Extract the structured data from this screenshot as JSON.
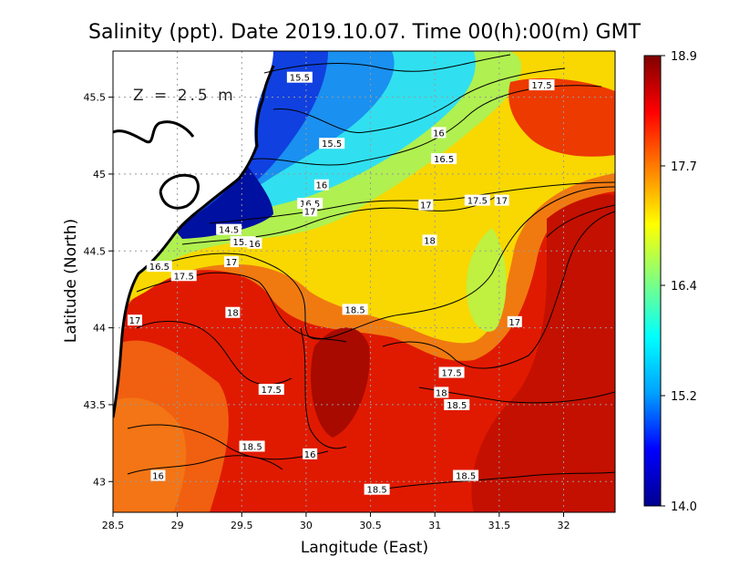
{
  "chart_data": {
    "type": "heatmap",
    "title": "Salinity (ppt). Date 2019.10.07. Time 00(h):00(m) GMT",
    "depth_label": "Z = 2.5 m",
    "xlabel": "Langitude (East)",
    "ylabel": "Latitude (North)",
    "xlim": [
      28.5,
      32.4
    ],
    "ylim": [
      42.8,
      45.8
    ],
    "x_ticks": [
      {
        "value": 28.5,
        "label": "28.5"
      },
      {
        "value": 29,
        "label": "29"
      },
      {
        "value": 29.5,
        "label": "29.5"
      },
      {
        "value": 30,
        "label": "30"
      },
      {
        "value": 30.5,
        "label": "30.5"
      },
      {
        "value": 31,
        "label": "31"
      },
      {
        "value": 31.5,
        "label": "31.5"
      },
      {
        "value": 32,
        "label": "32"
      }
    ],
    "y_ticks": [
      {
        "value": 43,
        "label": "43"
      },
      {
        "value": 43.5,
        "label": "43.5"
      },
      {
        "value": 44,
        "label": "44"
      },
      {
        "value": 44.5,
        "label": "44.5"
      },
      {
        "value": 45,
        "label": "45"
      },
      {
        "value": 45.5,
        "label": "45.5"
      }
    ],
    "grid": true,
    "colorbar": {
      "min": 14.0,
      "max": 18.9,
      "ticks": [
        {
          "value": 18.9,
          "label": "18.9"
        },
        {
          "value": 17.7,
          "label": "17.7"
        },
        {
          "value": 16.4,
          "label": "16.4"
        },
        {
          "value": 15.2,
          "label": "15.2"
        },
        {
          "value": 14.0,
          "label": "14.0"
        }
      ],
      "colormap": [
        "#00008f",
        "#0000ff",
        "#00a0ff",
        "#00ffff",
        "#80ff80",
        "#ffff00",
        "#ff8000",
        "#ff0000",
        "#800000"
      ]
    },
    "contour_labels": [
      {
        "lon": 29.95,
        "lat": 45.63,
        "text": "15.5"
      },
      {
        "lon": 31.83,
        "lat": 45.58,
        "text": "17.5"
      },
      {
        "lon": 30.2,
        "lat": 45.2,
        "text": "15.5"
      },
      {
        "lon": 31.03,
        "lat": 45.27,
        "text": "16"
      },
      {
        "lon": 31.07,
        "lat": 45.1,
        "text": "16.5"
      },
      {
        "lon": 30.12,
        "lat": 44.93,
        "text": "16"
      },
      {
        "lon": 30.03,
        "lat": 44.81,
        "text": "16.5"
      },
      {
        "lon": 30.03,
        "lat": 44.76,
        "text": "17"
      },
      {
        "lon": 30.93,
        "lat": 44.8,
        "text": "17"
      },
      {
        "lon": 31.33,
        "lat": 44.83,
        "text": "17.5"
      },
      {
        "lon": 31.52,
        "lat": 44.83,
        "text": "17"
      },
      {
        "lon": 29.4,
        "lat": 44.64,
        "text": "14.5"
      },
      {
        "lon": 29.51,
        "lat": 44.56,
        "text": "15.5"
      },
      {
        "lon": 29.6,
        "lat": 44.55,
        "text": "16"
      },
      {
        "lon": 30.96,
        "lat": 44.57,
        "text": "18"
      },
      {
        "lon": 28.86,
        "lat": 44.4,
        "text": "16.5"
      },
      {
        "lon": 29.42,
        "lat": 44.43,
        "text": "17"
      },
      {
        "lon": 29.05,
        "lat": 44.34,
        "text": "17.5"
      },
      {
        "lon": 29.43,
        "lat": 44.1,
        "text": "18"
      },
      {
        "lon": 30.38,
        "lat": 44.12,
        "text": "18.5"
      },
      {
        "lon": 28.67,
        "lat": 44.05,
        "text": "17"
      },
      {
        "lon": 31.62,
        "lat": 44.04,
        "text": "17"
      },
      {
        "lon": 29.73,
        "lat": 43.6,
        "text": "17.5"
      },
      {
        "lon": 31.13,
        "lat": 43.71,
        "text": "17.5"
      },
      {
        "lon": 31.05,
        "lat": 43.58,
        "text": "18"
      },
      {
        "lon": 31.17,
        "lat": 43.5,
        "text": "18.5"
      },
      {
        "lon": 29.58,
        "lat": 43.23,
        "text": "18.5"
      },
      {
        "lon": 30.03,
        "lat": 43.18,
        "text": "16"
      },
      {
        "lon": 28.85,
        "lat": 43.04,
        "text": "16"
      },
      {
        "lon": 31.24,
        "lat": 43.04,
        "text": "18.5"
      },
      {
        "lon": 30.55,
        "lat": 42.95,
        "text": "18.5"
      }
    ]
  }
}
